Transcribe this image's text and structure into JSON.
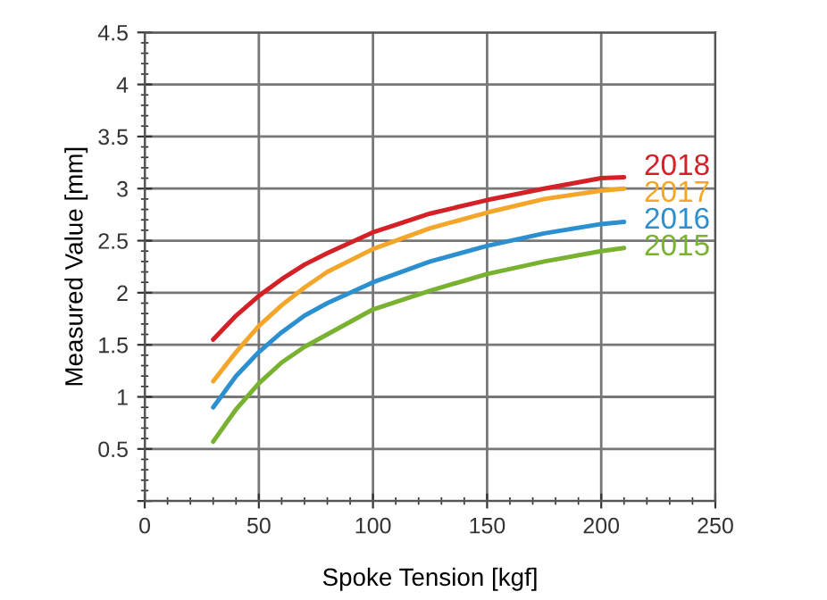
{
  "chart_data": {
    "type": "line",
    "xlabel": "Spoke Tension [kgf]",
    "ylabel": "Measured Value [mm]",
    "x": [
      30,
      40,
      50,
      60,
      70,
      80,
      100,
      125,
      150,
      175,
      200,
      210
    ],
    "series": [
      {
        "name": "2018",
        "color": "#d42027",
        "values": [
          1.55,
          1.78,
          1.97,
          2.13,
          2.27,
          2.38,
          2.58,
          2.76,
          2.89,
          3.0,
          3.1,
          3.11
        ]
      },
      {
        "name": "2017",
        "color": "#f4a62a",
        "values": [
          1.15,
          1.43,
          1.68,
          1.88,
          2.05,
          2.2,
          2.42,
          2.62,
          2.77,
          2.9,
          2.98,
          3.0
        ]
      },
      {
        "name": "2016",
        "color": "#2b8fd0",
        "values": [
          0.9,
          1.2,
          1.43,
          1.62,
          1.78,
          1.9,
          2.1,
          2.3,
          2.45,
          2.57,
          2.66,
          2.68
        ]
      },
      {
        "name": "2015",
        "color": "#79b131",
        "values": [
          0.57,
          0.88,
          1.13,
          1.33,
          1.48,
          1.6,
          1.84,
          2.02,
          2.18,
          2.3,
          2.4,
          2.43
        ]
      }
    ],
    "xlim": [
      0,
      250
    ],
    "xticks": [
      0,
      50,
      100,
      150,
      200,
      250
    ],
    "ylim": [
      0,
      4.5
    ],
    "yticks": [
      {
        "value": 0,
        "label": null
      },
      0.5,
      1,
      1.5,
      2,
      2.5,
      3,
      3.5,
      4,
      4.5
    ],
    "grid": true,
    "legend": false,
    "marker": "none",
    "line_style": "solid"
  }
}
